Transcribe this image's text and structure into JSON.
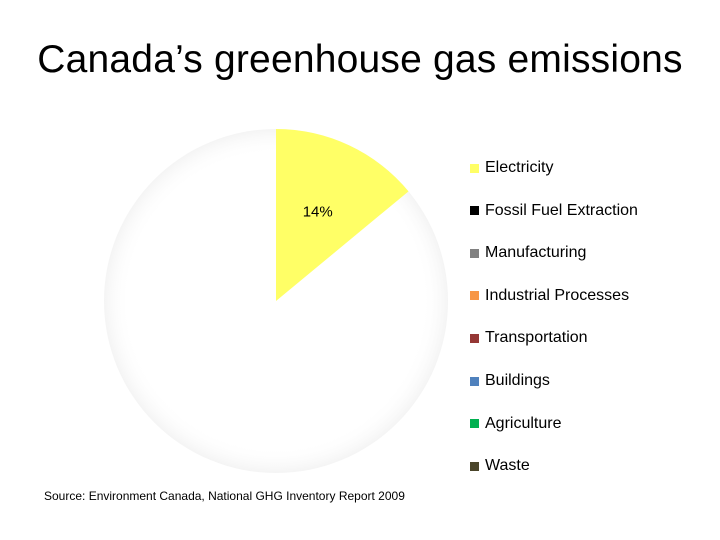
{
  "slide": {
    "title": "Canada’s greenhouse gas emissions",
    "source": "Source: Environment Canada, National GHG Inventory Report 2009"
  },
  "chart_data": {
    "type": "pie",
    "title": "",
    "slices": [
      {
        "label": "Electricity",
        "percent": 14,
        "color": "#FFFF66",
        "visible": true,
        "data_label": "14%"
      },
      {
        "label": "Fossil Fuel Extraction",
        "percent": null,
        "color": "#000000",
        "visible": false
      },
      {
        "label": "Manufacturing",
        "percent": null,
        "color": "#808080",
        "visible": false
      },
      {
        "label": "Industrial Processes",
        "percent": null,
        "color": "#F79646",
        "visible": false
      },
      {
        "label": "Transportation",
        "percent": null,
        "color": "#953735",
        "visible": false
      },
      {
        "label": "Buildings",
        "percent": null,
        "color": "#4F81BD",
        "visible": false
      },
      {
        "label": "Agriculture",
        "percent": null,
        "color": "#00B050",
        "visible": false
      },
      {
        "label": "Waste",
        "percent": null,
        "color": "#4A452A",
        "visible": false
      }
    ],
    "legend_position": "right"
  }
}
